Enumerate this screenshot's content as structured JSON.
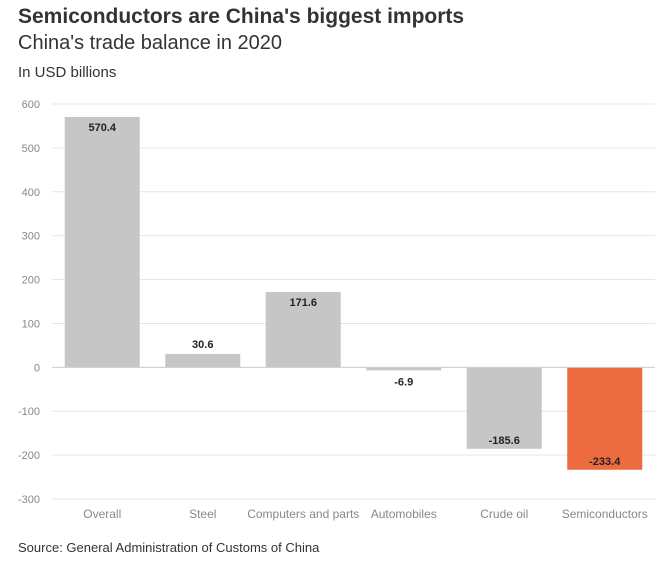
{
  "header": {
    "title": "Semiconductors are China's biggest imports",
    "subtitle": "China's trade balance in 2020",
    "unit": "In USD billions"
  },
  "footer": {
    "source": "Source: General Administration of Customs of China"
  },
  "chart_data": {
    "type": "bar",
    "categories": [
      "Overall",
      "Steel",
      "Computers and parts",
      "Automobiles",
      "Crude oil",
      "Semiconductors"
    ],
    "values": [
      570.4,
      30.6,
      171.6,
      -6.9,
      -185.6,
      -233.4
    ],
    "value_labels": [
      "570.4",
      "30.6",
      "171.6",
      "-6.9",
      "-185.6",
      "-233.4"
    ],
    "ylim": [
      -300,
      600
    ],
    "yticks": [
      600,
      500,
      400,
      300,
      200,
      100,
      0,
      -100,
      -200,
      -300
    ],
    "grid": true,
    "colors": {
      "default": "#c6c6c6",
      "highlight": "#ec6c40",
      "highlight_category": "Semiconductors",
      "grid": "#e6e6e6",
      "zero_line": "#cccccc"
    }
  }
}
